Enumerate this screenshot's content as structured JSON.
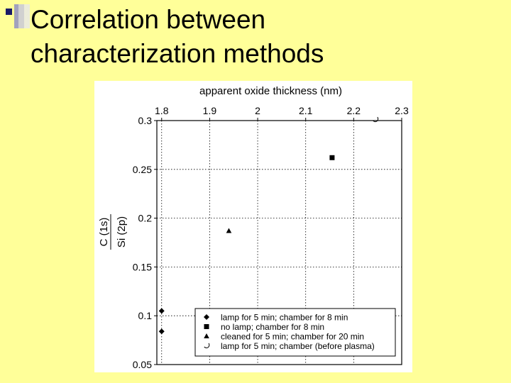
{
  "slide": {
    "title_line1": "Correlation between",
    "title_line2": "characterization methods"
  },
  "colors": {
    "background": "#ffff99",
    "bullet": "#1a1a66",
    "plot_border": "#000000",
    "grid": "#000000"
  },
  "chart_data": {
    "type": "scatter",
    "xlabel": "apparent oxide thickness (nm)",
    "ylabel_numerator": "C (1s)",
    "ylabel_denominator": "Si (2p)",
    "xlim": [
      1.79,
      2.3
    ],
    "ylim": [
      0.05,
      0.3
    ],
    "x_ticks": [
      1.8,
      1.9,
      2,
      2.1,
      2.2,
      2.3
    ],
    "x_tick_labels": [
      "1.8",
      "1.9",
      "2",
      "2.1",
      "2.2",
      "2.3"
    ],
    "y_ticks": [
      0.3,
      0.25,
      0.2,
      0.15,
      0.1,
      0.05
    ],
    "y_tick_labels": [
      "0.3",
      "0.25",
      "0.2",
      "0.15",
      "0.1",
      "0.05"
    ],
    "x_axis_position": "top",
    "grid": true,
    "legend_position": "bottom-right",
    "series": [
      {
        "name": "lamp for 5 min; chamber for 8 min",
        "marker": "diamond",
        "points": [
          [
            1.8,
            0.105
          ],
          [
            1.8,
            0.084
          ]
        ]
      },
      {
        "name": "no lamp; chamber for 8 min",
        "marker": "square",
        "points": [
          [
            2.155,
            0.262
          ]
        ]
      },
      {
        "name": "cleaned for 5 min; chamber for 20 min",
        "marker": "triangle",
        "points": [
          [
            1.94,
            0.187
          ]
        ]
      },
      {
        "name": "lamp for 5 min; chamber (before plasma)",
        "marker": "open-circle",
        "points": [
          [
            2.245,
            0.301
          ]
        ]
      }
    ]
  }
}
